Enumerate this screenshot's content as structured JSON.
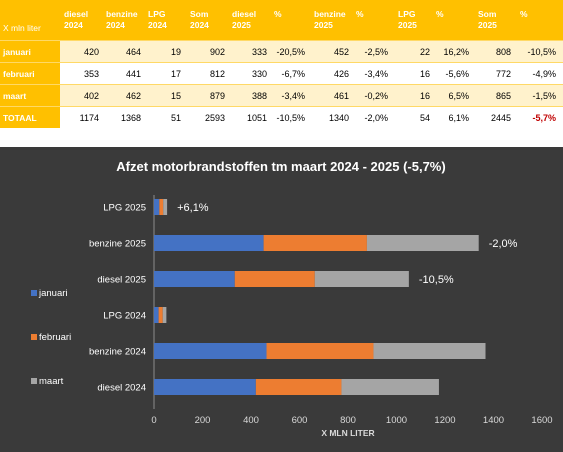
{
  "table": {
    "corner_label": "X mln liter",
    "headers": [
      [
        "diesel",
        "2024"
      ],
      [
        "benzine",
        "2024"
      ],
      [
        "LPG",
        "2024"
      ],
      [
        "Som",
        "2024"
      ],
      [
        "diesel",
        "2025"
      ],
      [
        "%",
        ""
      ],
      [
        "benzine",
        "2025"
      ],
      [
        "%",
        ""
      ],
      [
        "LPG",
        "2025"
      ],
      [
        "%",
        ""
      ],
      [
        "Som",
        "2025"
      ],
      [
        "%",
        ""
      ]
    ],
    "rows": [
      {
        "label": "januari",
        "cells": [
          "420",
          "464",
          "19",
          "902",
          "333",
          "-20,5%",
          "452",
          "-2,5%",
          "22",
          "16,2%",
          "808",
          "-10,5%"
        ]
      },
      {
        "label": "februari",
        "cells": [
          "353",
          "441",
          "17",
          "812",
          "330",
          "-6,7%",
          "426",
          "-3,4%",
          "16",
          "-5,6%",
          "772",
          "-4,9%"
        ]
      },
      {
        "label": "maart",
        "cells": [
          "402",
          "462",
          "15",
          "879",
          "388",
          "-3,4%",
          "461",
          "-0,2%",
          "16",
          "6,5%",
          "865",
          "-1,5%"
        ]
      },
      {
        "label": "TOTAAL",
        "cells": [
          "1174",
          "1368",
          "51",
          "2593",
          "1051",
          "-10,5%",
          "1340",
          "-2,0%",
          "54",
          "6,1%",
          "2445",
          "-5,7%"
        ]
      }
    ],
    "colors": {
      "header_bg": "#ffc000",
      "band_bg": "#fff2cc",
      "highlight_red": "#c00000"
    }
  },
  "chart_data": {
    "type": "bar",
    "orientation": "horizontal",
    "stacked": true,
    "title": "Afzet motorbrandstoffen tm maart 2024 - 2025 (-5,7%)",
    "xlabel": "X MLN LITER",
    "ylabel": "",
    "xlim": [
      0,
      1600
    ],
    "xticks": [
      0,
      200,
      400,
      600,
      800,
      1000,
      1200,
      1400,
      1600
    ],
    "grid": false,
    "legend_position": "left",
    "categories": [
      "LPG 2025",
      "benzine 2025",
      "diesel 2025",
      "LPG 2024",
      "benzine 2024",
      "diesel 2024"
    ],
    "series": [
      {
        "name": "januari",
        "color": "#4472c4",
        "values": [
          22,
          452,
          333,
          19,
          464,
          420
        ]
      },
      {
        "name": "februari",
        "color": "#ed7d31",
        "values": [
          16,
          426,
          330,
          17,
          441,
          353
        ]
      },
      {
        "name": "maart",
        "color": "#a5a5a5",
        "values": [
          16,
          461,
          388,
          15,
          462,
          402
        ]
      }
    ],
    "annotations": [
      "+6,1%",
      "-2,0%",
      "-10,5%",
      "",
      "",
      ""
    ]
  }
}
